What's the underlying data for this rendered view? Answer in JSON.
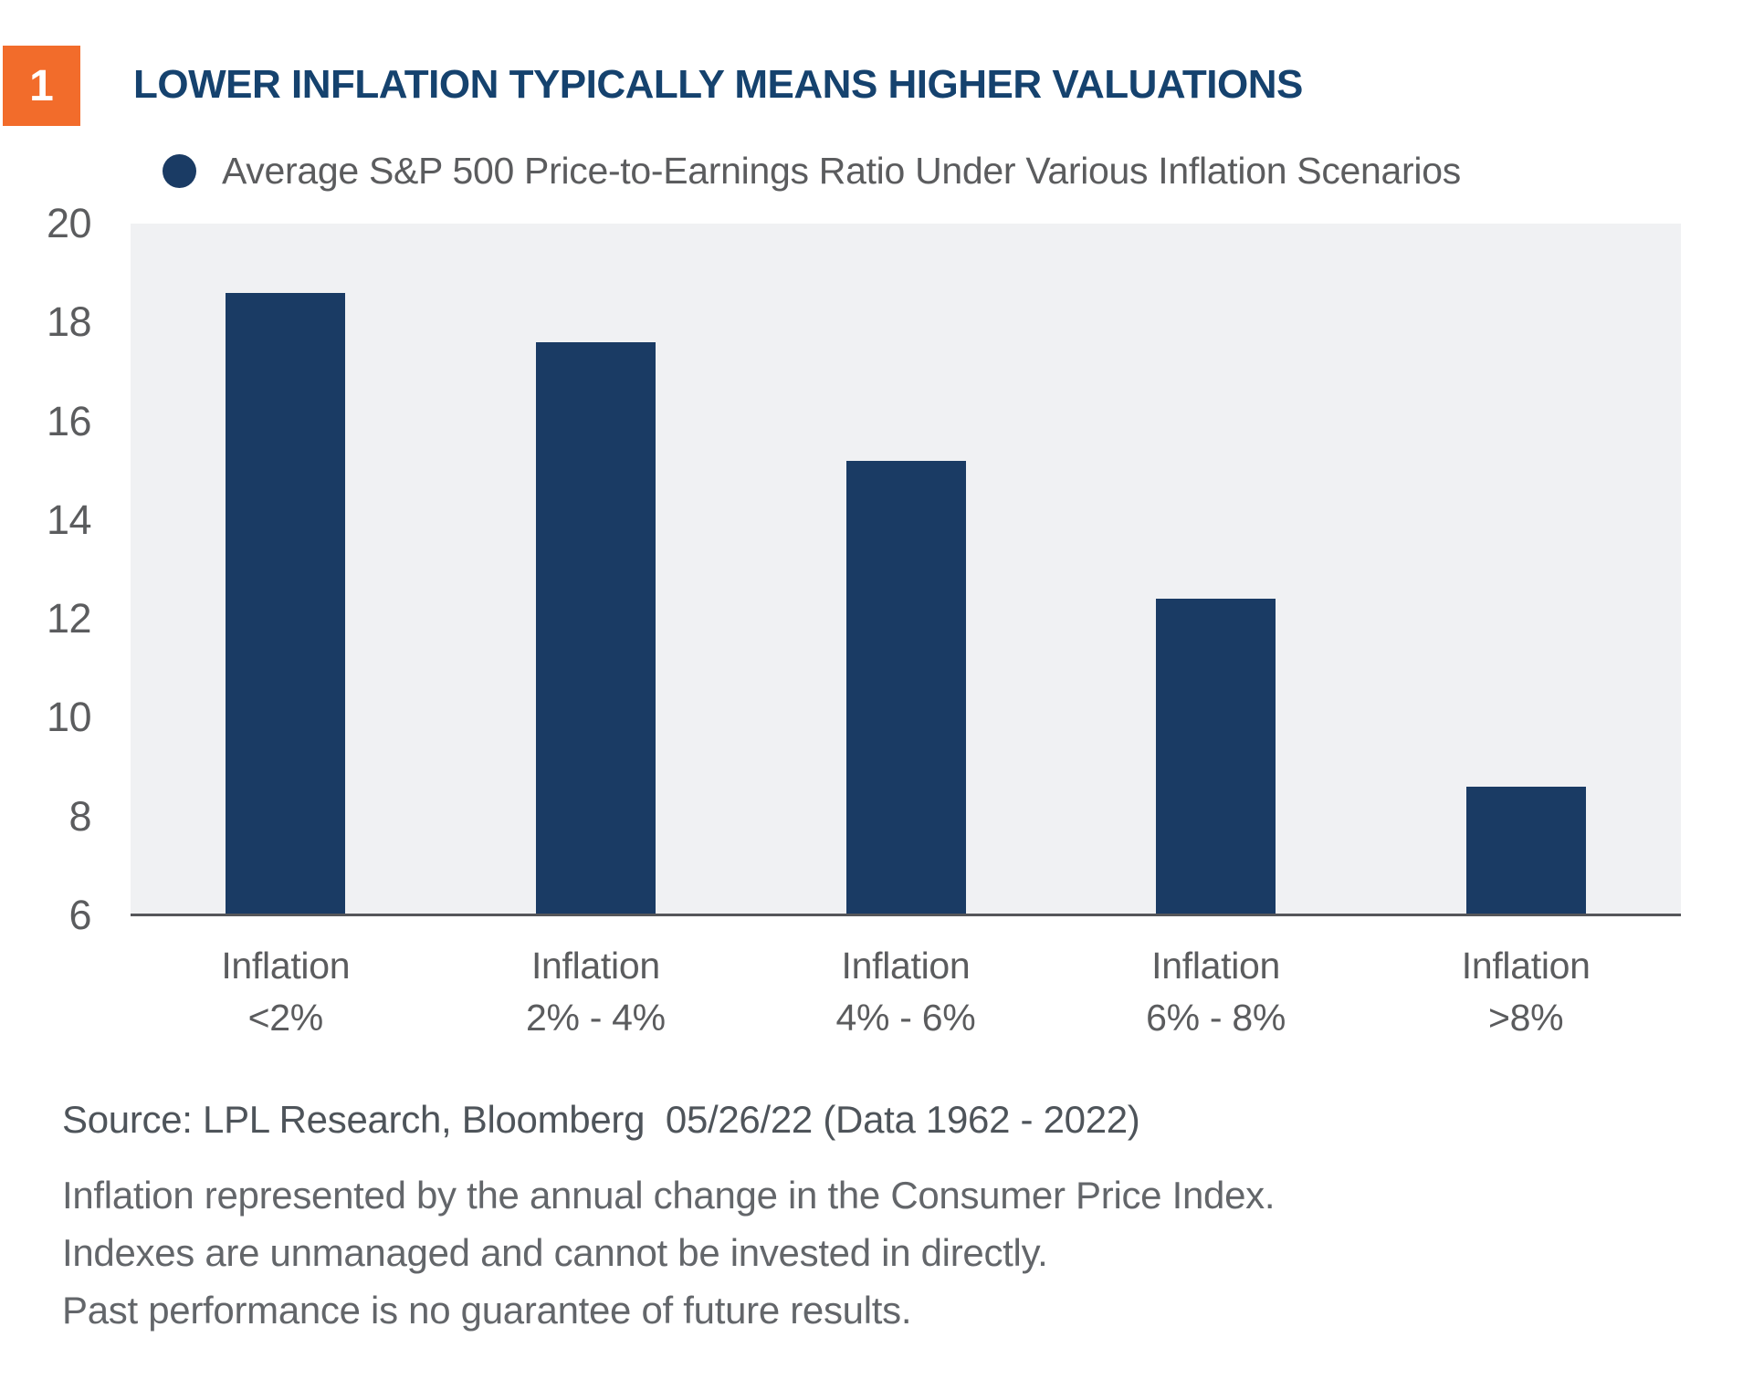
{
  "page": {
    "figure_number": "1",
    "title": "LOWER INFLATION TYPICALLY MEANS HIGHER VALUATIONS",
    "legend_label": "Average S&P 500 Price-to-Earnings Ratio Under Various Inflation Scenarios",
    "source_line": "Source: LPL Research, Bloomberg  05/26/22 (Data 1962 - 2022)",
    "footnotes": [
      "Inflation represented by the annual change in the Consumer Price Index.",
      "Indexes are unmanaged and cannot be invested in directly.",
      "Past performance is no guarantee of future results."
    ]
  },
  "colors": {
    "accent_orange": "#F26C2B",
    "title_blue": "#15426E",
    "bar_navy": "#1A3B64",
    "plot_background": "#F0F1F3",
    "axis_gray": "#55565A",
    "label_gray": "#5B5C5E",
    "source_gray": "#4E545A",
    "footnote_gray": "#63666A"
  },
  "chart_data": {
    "type": "bar",
    "title": "LOWER INFLATION TYPICALLY MEANS HIGHER VALUATIONS",
    "legend_entries": [
      "Average S&P 500 Price-to-Earnings Ratio Under Various Inflation Scenarios"
    ],
    "legend_position": "top-left",
    "categories": [
      "Inflation\n<2%",
      "Inflation\n2% - 4%",
      "Inflation\n4% - 6%",
      "Inflation\n6% - 8%",
      "Inflation\n>8%"
    ],
    "values": [
      18.6,
      17.6,
      15.2,
      12.4,
      8.6
    ],
    "xlabel": "",
    "ylabel": "",
    "ylim": [
      6,
      20
    ],
    "yticks": [
      6,
      8,
      10,
      12,
      14,
      16,
      18,
      20
    ],
    "grid": false
  }
}
